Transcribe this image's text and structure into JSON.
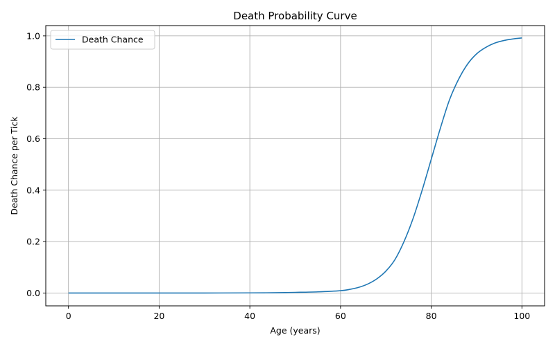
{
  "chart_data": {
    "type": "line",
    "title": "Death Probability Curve",
    "xlabel": "Age (years)",
    "ylabel": "Death Chance per Tick",
    "xlim": [
      -5,
      105
    ],
    "ylim": [
      -0.05,
      1.04
    ],
    "x_ticks": [
      0,
      20,
      40,
      60,
      80,
      100
    ],
    "y_ticks": [
      0.0,
      0.2,
      0.4,
      0.6,
      0.8,
      1.0
    ],
    "x_tick_labels": [
      "0",
      "20",
      "40",
      "60",
      "80",
      "100"
    ],
    "y_tick_labels": [
      "0.0",
      "0.2",
      "0.4",
      "0.6",
      "0.8",
      "1.0"
    ],
    "grid": true,
    "legend_position": "top-left",
    "series": [
      {
        "name": "Death Chance",
        "color": "#1f77b4",
        "x": [
          0,
          10,
          20,
          30,
          40,
          45,
          50,
          55,
          60,
          62,
          64,
          66,
          68,
          70,
          72,
          74,
          76,
          78,
          80,
          82,
          84,
          86,
          88,
          90,
          92,
          94,
          96,
          98,
          100
        ],
        "y": [
          0.0,
          0.0,
          0.0,
          0.0,
          0.0005,
          0.001,
          0.0025,
          0.0045,
          0.009,
          0.014,
          0.022,
          0.035,
          0.055,
          0.085,
          0.13,
          0.2,
          0.29,
          0.4,
          0.52,
          0.64,
          0.75,
          0.83,
          0.89,
          0.93,
          0.955,
          0.972,
          0.982,
          0.988,
          0.992
        ]
      }
    ]
  }
}
